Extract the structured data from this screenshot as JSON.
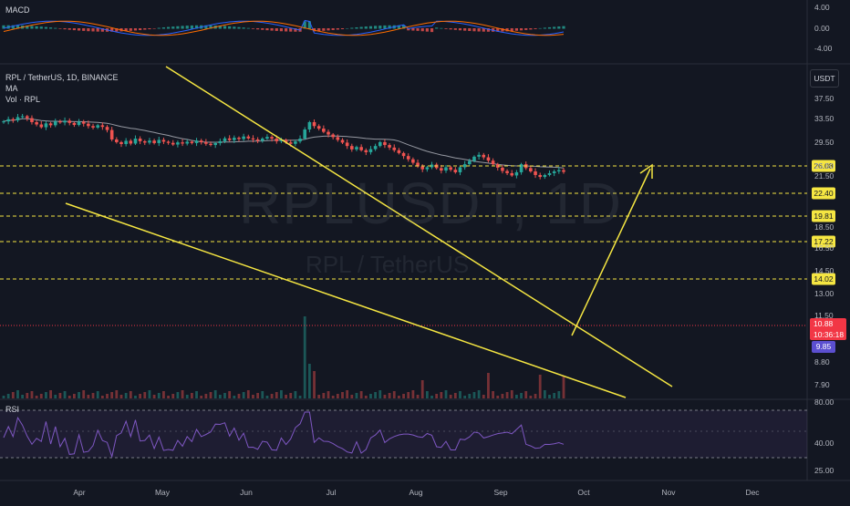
{
  "header": {
    "symbol": "RPL / TetherUS, 1D, BINANCE",
    "indicator_ma": "MA",
    "indicator_vol": "Vol · RPL",
    "macd_label": "MACD",
    "rsi_label": "RSI",
    "currency": "USDT"
  },
  "watermark": {
    "symbol": "RPLUSDT, 1D",
    "name": "RPL / TetherUS"
  },
  "colors": {
    "background": "#131722",
    "up": "#26a69a",
    "down": "#ef5350",
    "trendline": "#f5e642",
    "level": "#f5e642",
    "ma": "#9598a1",
    "rsi": "#7e57c2",
    "macd": "#2962ff",
    "signal": "#ff6d00",
    "current_price": "#f23645",
    "low_tag": "#5b4fd0"
  },
  "price_axis": {
    "ticks": [
      "37.50",
      "33.50",
      "29.50",
      "25.50",
      "21.50",
      "18.50",
      "16.50",
      "14.50",
      "13.00",
      "11.50",
      "8.80",
      "7.90"
    ],
    "current_price": "10.88",
    "countdown": "10:36:18",
    "low_marker": "9.85"
  },
  "levels": [
    "26.08",
    "22.40",
    "19.81",
    "17.22",
    "14.02"
  ],
  "macd_axis": {
    "ticks": [
      "4.00",
      "0.00",
      "-4.00"
    ]
  },
  "rsi_axis": {
    "ticks": [
      "80.00",
      "40.00",
      "25.00"
    ]
  },
  "time_axis": {
    "labels": [
      "Apr",
      "May",
      "Jun",
      "Jul",
      "Aug",
      "Sep",
      "Oct",
      "Nov",
      "Dec"
    ]
  },
  "chart_data": {
    "type": "candlestick",
    "timeframe": "1D",
    "resistance_line": {
      "from": [
        "Apr 28",
        "33.5"
      ],
      "to": [
        "Nov 01",
        "8.5"
      ]
    },
    "support_line": {
      "from": [
        "Mar 28",
        "22.0"
      ],
      "to": [
        "Sep 25",
        "7.6"
      ]
    },
    "projection_arrow": {
      "from": [
        "Sep 25",
        "10.5"
      ],
      "to": [
        "Oct 08",
        "26.0"
      ]
    },
    "horizontal_levels": [
      26.08,
      22.4,
      19.81,
      17.22,
      14.02
    ],
    "closes": [
      31.5,
      33.0,
      32.2,
      34.5,
      35.2,
      33.8,
      31.0,
      29.5,
      27.8,
      30.2,
      29.0,
      31.5,
      30.8,
      32.0,
      30.5,
      29.2,
      31.3,
      30.0,
      28.5,
      27.6,
      29.0,
      28.0,
      26.2,
      21.4,
      20.2,
      19.4,
      20.8,
      19.6,
      21.8,
      20.6,
      20.0,
      20.9,
      19.8,
      21.2,
      20.4,
      19.9,
      19.2,
      20.1,
      19.6,
      20.4,
      19.8,
      20.9,
      20.2,
      19.5,
      19.0,
      19.8,
      20.6,
      21.9,
      21.1,
      22.2,
      21.6,
      22.8,
      21.9,
      21.4,
      20.8,
      21.8,
      22.6,
      21.8,
      20.6,
      21.2,
      20.1,
      19.5,
      20.5,
      21.8,
      26.5,
      31.0,
      28.5,
      27.0,
      25.2,
      23.8,
      22.5,
      21.2,
      20.0,
      18.6,
      17.3,
      18.2,
      17.0,
      16.3,
      17.4,
      18.6,
      20.2,
      19.0,
      18.0,
      17.0,
      16.0,
      15.0,
      14.0,
      13.0,
      12.0,
      11.3,
      11.8,
      12.5,
      11.6,
      11.0,
      11.8,
      11.2,
      10.6,
      11.8,
      12.6,
      13.5,
      14.8,
      15.4,
      14.6,
      13.6,
      12.6,
      11.7,
      10.9,
      10.4,
      9.9,
      10.6,
      12.6,
      11.6,
      10.8,
      10.0,
      9.6,
      10.0,
      10.4,
      10.8,
      11.1,
      10.7
    ]
  }
}
